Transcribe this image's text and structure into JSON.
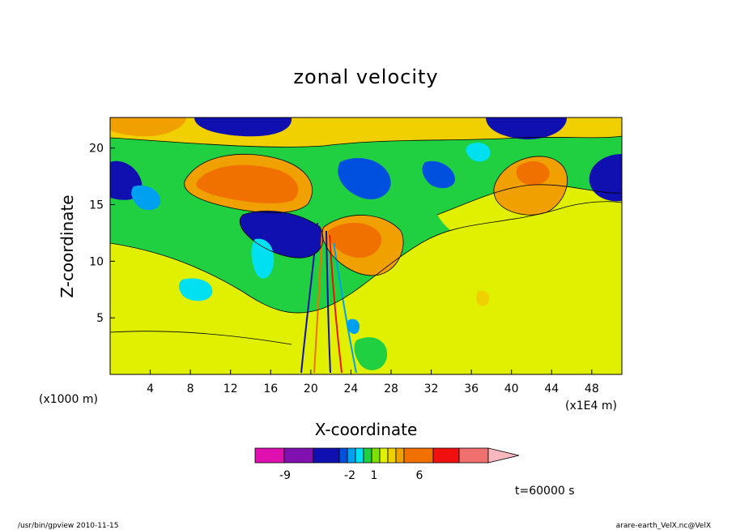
{
  "chart_data": {
    "type": "heatmap",
    "title": "zonal velocity",
    "xlabel": "X-coordinate",
    "ylabel": "Z-coordinate",
    "x_units_label": "(x1000 m)",
    "x_scale_label": "(x1E4 m)",
    "x_ticks": [
      4,
      8,
      12,
      16,
      20,
      24,
      28,
      32,
      36,
      40,
      44,
      48
    ],
    "y_ticks": [
      5,
      10,
      15,
      20
    ],
    "xlim": [
      0,
      51
    ],
    "ylim": [
      0,
      22.7
    ],
    "time_label": "t=60000 s",
    "colorbar": {
      "colors": [
        "#e010b0",
        "#8010b0",
        "#1010b0",
        "#0050e0",
        "#00a0f0",
        "#00e0f0",
        "#20d040",
        "#80e000",
        "#e0f000",
        "#f0d000",
        "#f0a000",
        "#f07000",
        "#f01010",
        "#f07070",
        "#f8b8c0"
      ],
      "tick_labels": [
        "-9",
        "-2",
        "1",
        "6"
      ]
    },
    "contour_note": "filled contours of zonal velocity; strong shear zone near x=21"
  },
  "footer": {
    "left": "/usr/bin/gpview  2010-11-15",
    "right": "arare-earth_VelX.nc@VelX"
  }
}
